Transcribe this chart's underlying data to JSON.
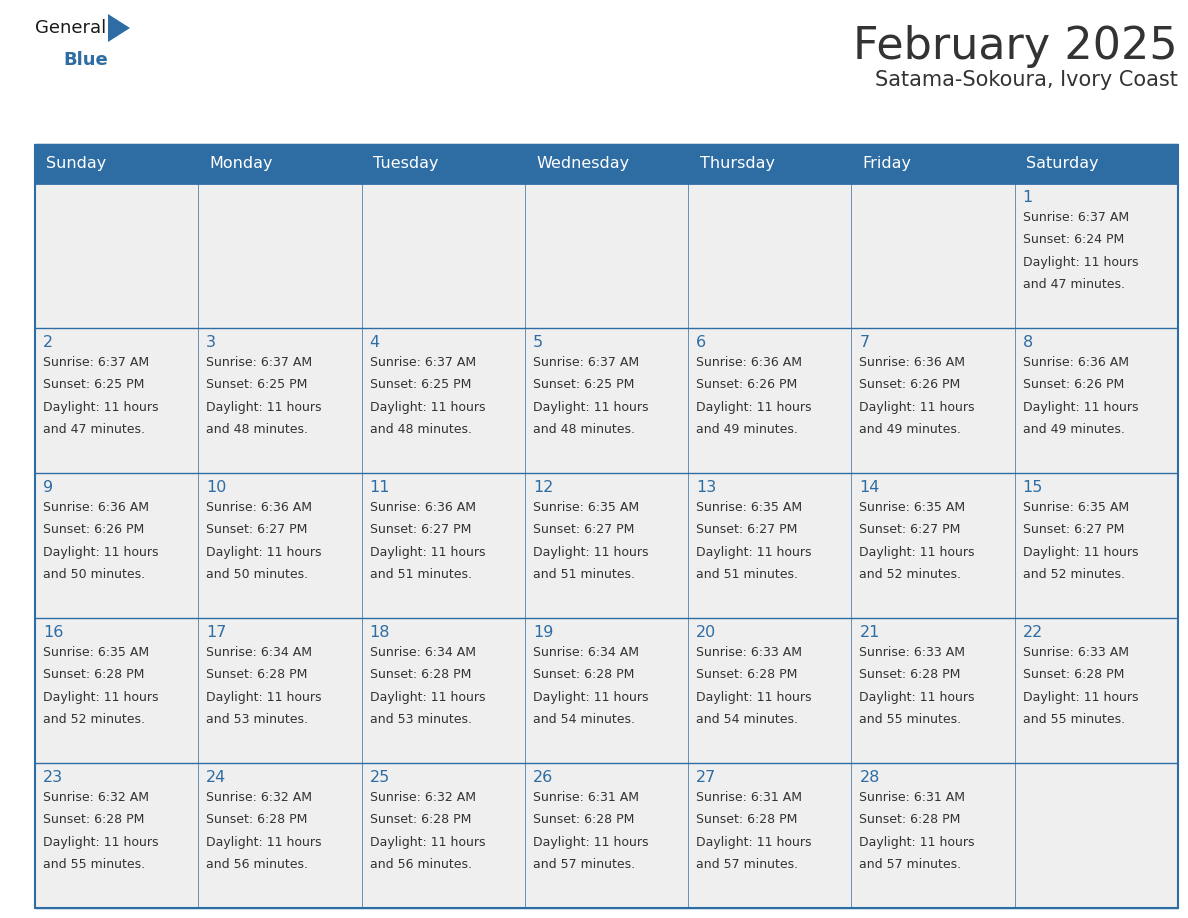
{
  "title": "February 2025",
  "subtitle": "Satama-Sokoura, Ivory Coast",
  "header_bg": "#2E6DA4",
  "header_text": "#FFFFFF",
  "day_names": [
    "Sunday",
    "Monday",
    "Tuesday",
    "Wednesday",
    "Thursday",
    "Friday",
    "Saturday"
  ],
  "cell_bg": "#EFEFEF",
  "border_color": "#2E6DA4",
  "number_color": "#2E6DA4",
  "text_color": "#333333",
  "logo_general_color": "#1a1a1a",
  "logo_blue_color": "#2E6DA4",
  "calendar_data": [
    [
      null,
      null,
      null,
      null,
      null,
      null,
      {
        "day": 1,
        "sunrise": "6:37 AM",
        "sunset": "6:24 PM",
        "daylight": "11 hours and 47 minutes"
      }
    ],
    [
      {
        "day": 2,
        "sunrise": "6:37 AM",
        "sunset": "6:25 PM",
        "daylight": "11 hours and 47 minutes"
      },
      {
        "day": 3,
        "sunrise": "6:37 AM",
        "sunset": "6:25 PM",
        "daylight": "11 hours and 48 minutes"
      },
      {
        "day": 4,
        "sunrise": "6:37 AM",
        "sunset": "6:25 PM",
        "daylight": "11 hours and 48 minutes"
      },
      {
        "day": 5,
        "sunrise": "6:37 AM",
        "sunset": "6:25 PM",
        "daylight": "11 hours and 48 minutes"
      },
      {
        "day": 6,
        "sunrise": "6:36 AM",
        "sunset": "6:26 PM",
        "daylight": "11 hours and 49 minutes"
      },
      {
        "day": 7,
        "sunrise": "6:36 AM",
        "sunset": "6:26 PM",
        "daylight": "11 hours and 49 minutes"
      },
      {
        "day": 8,
        "sunrise": "6:36 AM",
        "sunset": "6:26 PM",
        "daylight": "11 hours and 49 minutes"
      }
    ],
    [
      {
        "day": 9,
        "sunrise": "6:36 AM",
        "sunset": "6:26 PM",
        "daylight": "11 hours and 50 minutes"
      },
      {
        "day": 10,
        "sunrise": "6:36 AM",
        "sunset": "6:27 PM",
        "daylight": "11 hours and 50 minutes"
      },
      {
        "day": 11,
        "sunrise": "6:36 AM",
        "sunset": "6:27 PM",
        "daylight": "11 hours and 51 minutes"
      },
      {
        "day": 12,
        "sunrise": "6:35 AM",
        "sunset": "6:27 PM",
        "daylight": "11 hours and 51 minutes"
      },
      {
        "day": 13,
        "sunrise": "6:35 AM",
        "sunset": "6:27 PM",
        "daylight": "11 hours and 51 minutes"
      },
      {
        "day": 14,
        "sunrise": "6:35 AM",
        "sunset": "6:27 PM",
        "daylight": "11 hours and 52 minutes"
      },
      {
        "day": 15,
        "sunrise": "6:35 AM",
        "sunset": "6:27 PM",
        "daylight": "11 hours and 52 minutes"
      }
    ],
    [
      {
        "day": 16,
        "sunrise": "6:35 AM",
        "sunset": "6:28 PM",
        "daylight": "11 hours and 52 minutes"
      },
      {
        "day": 17,
        "sunrise": "6:34 AM",
        "sunset": "6:28 PM",
        "daylight": "11 hours and 53 minutes"
      },
      {
        "day": 18,
        "sunrise": "6:34 AM",
        "sunset": "6:28 PM",
        "daylight": "11 hours and 53 minutes"
      },
      {
        "day": 19,
        "sunrise": "6:34 AM",
        "sunset": "6:28 PM",
        "daylight": "11 hours and 54 minutes"
      },
      {
        "day": 20,
        "sunrise": "6:33 AM",
        "sunset": "6:28 PM",
        "daylight": "11 hours and 54 minutes"
      },
      {
        "day": 21,
        "sunrise": "6:33 AM",
        "sunset": "6:28 PM",
        "daylight": "11 hours and 55 minutes"
      },
      {
        "day": 22,
        "sunrise": "6:33 AM",
        "sunset": "6:28 PM",
        "daylight": "11 hours and 55 minutes"
      }
    ],
    [
      {
        "day": 23,
        "sunrise": "6:32 AM",
        "sunset": "6:28 PM",
        "daylight": "11 hours and 55 minutes"
      },
      {
        "day": 24,
        "sunrise": "6:32 AM",
        "sunset": "6:28 PM",
        "daylight": "11 hours and 56 minutes"
      },
      {
        "day": 25,
        "sunrise": "6:32 AM",
        "sunset": "6:28 PM",
        "daylight": "11 hours and 56 minutes"
      },
      {
        "day": 26,
        "sunrise": "6:31 AM",
        "sunset": "6:28 PM",
        "daylight": "11 hours and 57 minutes"
      },
      {
        "day": 27,
        "sunrise": "6:31 AM",
        "sunset": "6:28 PM",
        "daylight": "11 hours and 57 minutes"
      },
      {
        "day": 28,
        "sunrise": "6:31 AM",
        "sunset": "6:28 PM",
        "daylight": "11 hours and 57 minutes"
      },
      null
    ]
  ],
  "figsize": [
    11.88,
    9.18
  ],
  "dpi": 100
}
